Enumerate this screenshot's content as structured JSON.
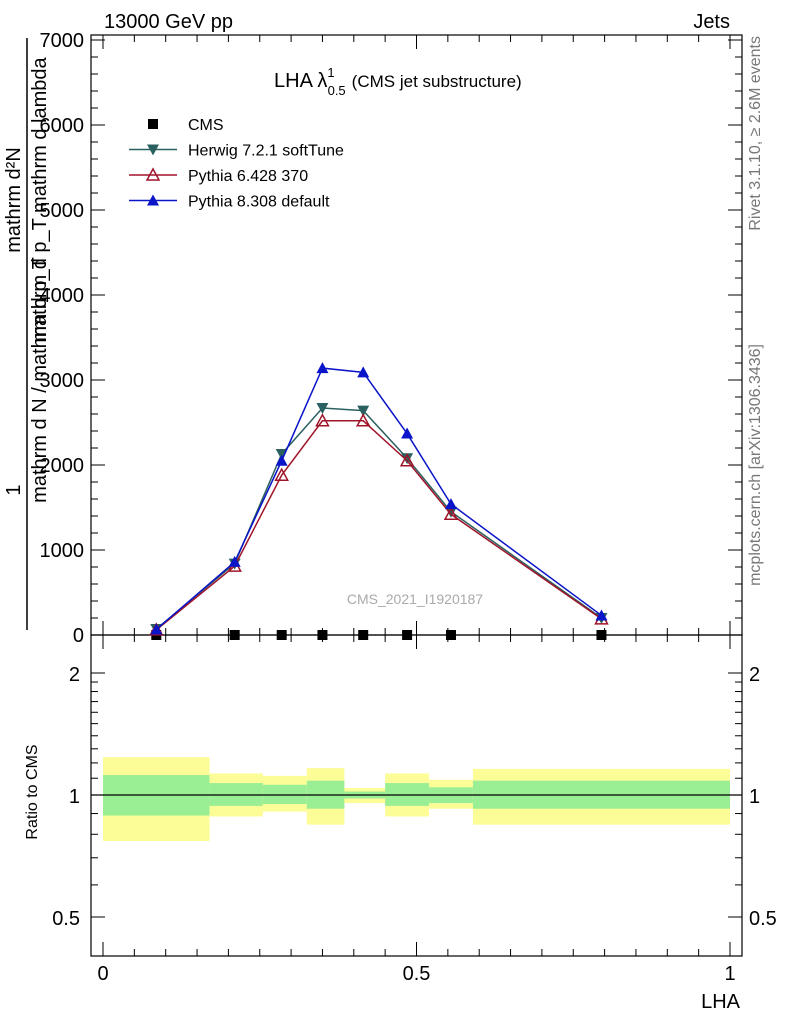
{
  "header": {
    "left": "13000 GeV pp",
    "right": "Jets"
  },
  "side_labels": {
    "rivet": "Rivet 3.1.10, ≥ 2.6M events",
    "mcplots": "mcplots.cern.ch [arXiv:1306.3436]"
  },
  "chart_data": [
    {
      "type": "line",
      "title_main": "LHA λ",
      "title_sup": "1",
      "title_sub": "0.5",
      "title_suffix": "(CMS jet substructure)",
      "ylabel_numerator": "mathrm d²N",
      "ylabel_denominator": "mathrm d p_T mathrm d lambda",
      "ylabel_left": "1",
      "ylabel_left_denominator": "mathrm d N / mathrm d p_T",
      "watermark": "CMS_2021_I1920187",
      "xlim": [
        -0.02,
        1.0
      ],
      "ylim": [
        0,
        7000
      ],
      "yticks": [
        0,
        1000,
        2000,
        3000,
        4000,
        5000,
        6000,
        7000
      ],
      "ytick_labels": [
        "0",
        "1000",
        "2000",
        "3000",
        "4000",
        "5000",
        "6000",
        "7000"
      ],
      "legend_position": "top-left",
      "series": [
        {
          "name": "CMS",
          "color": "#000000",
          "marker": "square",
          "x": [
            0.085,
            0.21,
            0.285,
            0.35,
            0.415,
            0.485,
            0.555,
            0.795
          ],
          "values": [
            0,
            0,
            0,
            0,
            0,
            0,
            0,
            0
          ]
        },
        {
          "name": "Herwig 7.2.1 softTune",
          "color": "#2b6060",
          "marker": "triangle-down",
          "x": [
            0.085,
            0.21,
            0.285,
            0.35,
            0.415,
            0.485,
            0.555,
            0.795
          ],
          "values": [
            70,
            840,
            2130,
            2670,
            2640,
            2080,
            1450,
            200
          ]
        },
        {
          "name": "Pythia 6.428 370",
          "color": "#a0142a",
          "marker": "triangle-open",
          "x": [
            0.085,
            0.21,
            0.285,
            0.35,
            0.415,
            0.485,
            0.555,
            0.795
          ],
          "values": [
            60,
            810,
            1880,
            2520,
            2520,
            2050,
            1420,
            190
          ]
        },
        {
          "name": "Pythia 8.308 default",
          "color": "#0a14c8",
          "marker": "triangle-up",
          "x": [
            0.085,
            0.21,
            0.285,
            0.35,
            0.415,
            0.485,
            0.555,
            0.795
          ],
          "values": [
            65,
            860,
            2050,
            3140,
            3090,
            2370,
            1540,
            230
          ]
        }
      ]
    },
    {
      "type": "area",
      "ylabel": "Ratio to CMS",
      "xlabel": "LHA",
      "xlim": [
        -0.02,
        1.0
      ],
      "ylim": [
        0.4,
        2.3
      ],
      "yscale": "log",
      "yticks": [
        0.5,
        1,
        2
      ],
      "ytick_labels": [
        "0.5",
        "1",
        "2"
      ],
      "xticks": [
        0,
        0.5,
        1
      ],
      "xtick_labels": [
        "0",
        "0.5",
        "1"
      ],
      "reference_line": 1,
      "bands": [
        {
          "x0": 0.0,
          "x1": 0.17,
          "green": [
            0.89,
            1.12
          ],
          "yellow": [
            0.77,
            1.24
          ]
        },
        {
          "x0": 0.17,
          "x1": 0.255,
          "green": [
            0.94,
            1.07
          ],
          "yellow": [
            0.885,
            1.13
          ]
        },
        {
          "x0": 0.255,
          "x1": 0.325,
          "green": [
            0.95,
            1.06
          ],
          "yellow": [
            0.91,
            1.115
          ]
        },
        {
          "x0": 0.325,
          "x1": 0.385,
          "green": [
            0.925,
            1.085
          ],
          "yellow": [
            0.845,
            1.165
          ]
        },
        {
          "x0": 0.385,
          "x1": 0.45,
          "green": [
            0.98,
            1.02
          ],
          "yellow": [
            0.955,
            1.04
          ]
        },
        {
          "x0": 0.45,
          "x1": 0.52,
          "green": [
            0.94,
            1.07
          ],
          "yellow": [
            0.885,
            1.13
          ]
        },
        {
          "x0": 0.52,
          "x1": 0.59,
          "green": [
            0.955,
            1.045
          ],
          "yellow": [
            0.925,
            1.09
          ]
        },
        {
          "x0": 0.59,
          "x1": 1.0,
          "green": [
            0.925,
            1.085
          ],
          "yellow": [
            0.845,
            1.16
          ]
        }
      ],
      "band_colors": {
        "green": "#9aee94",
        "yellow": "#fdfd98"
      }
    }
  ]
}
